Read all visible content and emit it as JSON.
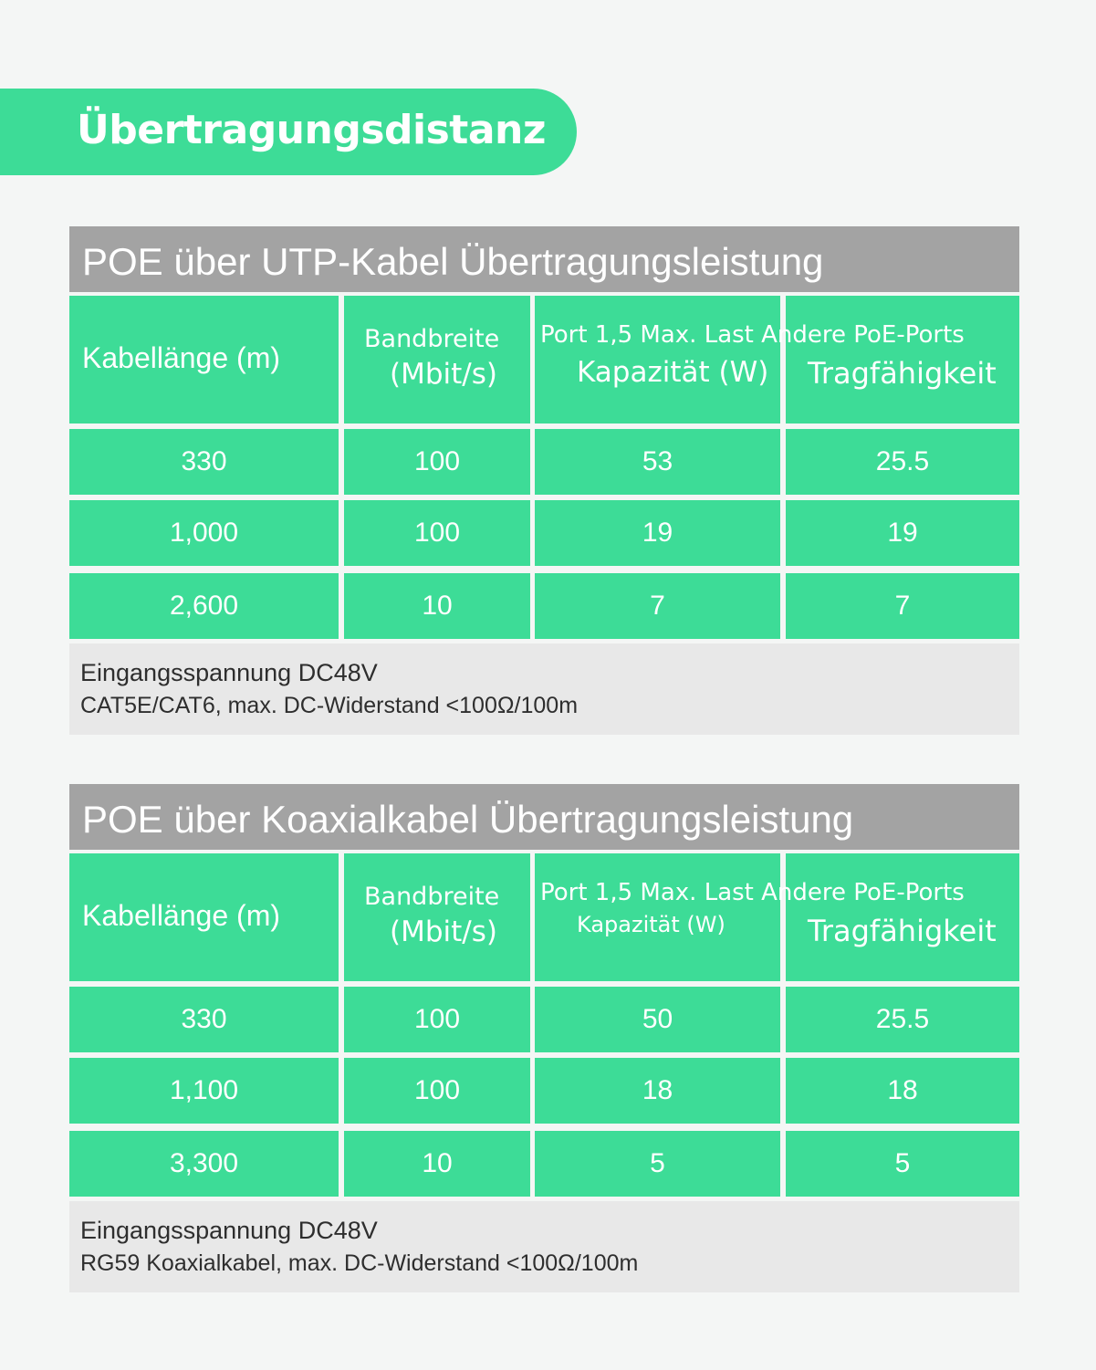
{
  "banner": {
    "title": "Übertragungsdistanz"
  },
  "tables": [
    {
      "title": "POE über UTP-Kabel Übertragungsleistung",
      "headers": {
        "cable_length": "Kabellänge (m)",
        "bandwidth_1": "Bandbreite",
        "bandwidth_2": "(Mbit/s)",
        "port": "Port 1,5 Max. Last Andere PoE-Ports",
        "capacity": "Kapazität (W)",
        "load": "Tragfähigkeit"
      },
      "rows": [
        [
          "330",
          "100",
          "53",
          "25.5"
        ],
        [
          "1,000",
          "100",
          "19",
          "19"
        ],
        [
          "2,600",
          "10",
          "7",
          "7"
        ]
      ],
      "note": {
        "line1": "Eingangsspannung DC48V",
        "line2": "CAT5E/CAT6, max. DC-Widerstand <100Ω/100m"
      }
    },
    {
      "title": "POE über Koaxialkabel Übertragungsleistung",
      "headers": {
        "cable_length": "Kabellänge (m)",
        "bandwidth_1": "Bandbreite",
        "bandwidth_2": "(Mbit/s)",
        "port": "Port 1,5 Max. Last Andere PoE-Ports",
        "capacity": "Kapazität (W)",
        "load": "Tragfähigkeit"
      },
      "rows": [
        [
          "330",
          "100",
          "50",
          "25.5"
        ],
        [
          "1,100",
          "100",
          "18",
          "18"
        ],
        [
          "3,300",
          "10",
          "5",
          "5"
        ]
      ],
      "note": {
        "line1": "Eingangsspannung DC48V",
        "line2": "RG59 Koaxialkabel, max. DC-Widerstand <100Ω/100m"
      }
    }
  ]
}
